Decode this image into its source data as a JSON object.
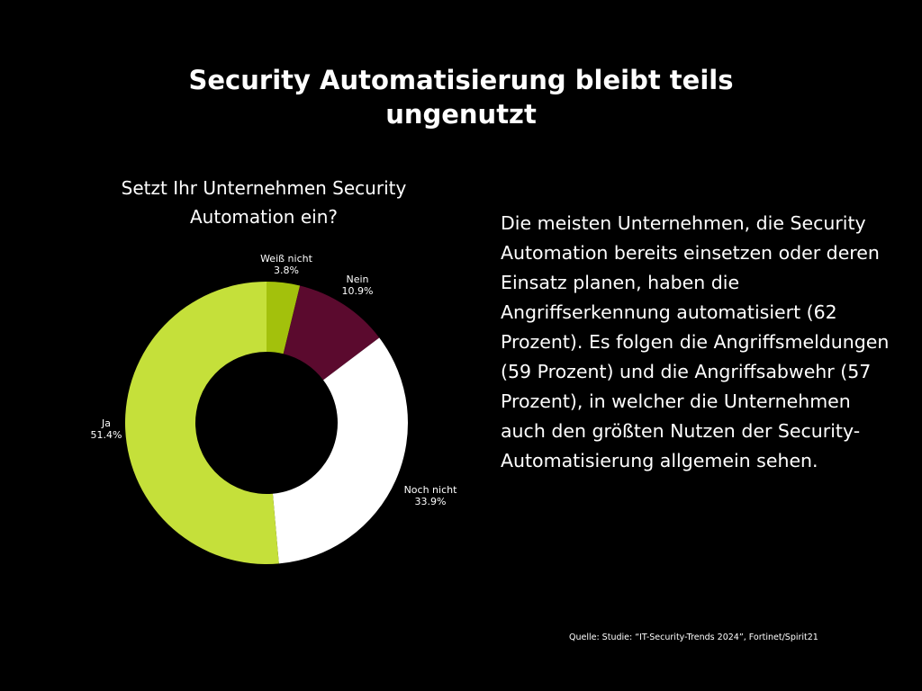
{
  "page": {
    "title": "Security Automatisierung bleibt teils ungenutzt",
    "description": "Die meisten Unternehmen, die Security Automation bereits einsetzen oder deren Einsatz planen, haben die Angriffserkennung automatisiert (62 Prozent). Es folgen die Angriffsmeldungen (59 Prozent) und die Angriffsabwehr (57 Prozent), in welcher die Unternehmen auch den größten Nutzen der Security-Automatisierung allgemein sehen.",
    "source": "Quelle: Studie: “IT-Security-Trends 2024”, Fortinet/Spirit21",
    "background_color": "#000000"
  },
  "chart_data": {
    "type": "pie",
    "variant": "donut",
    "title": "Setzt Ihr Unternehmen Security Automation ein?",
    "unit": "%",
    "legend": "none",
    "slices": [
      {
        "label": "Weiß nicht",
        "value": 3.8,
        "display": "3.8%",
        "color": "#a3c10c"
      },
      {
        "label": "Nein",
        "value": 10.9,
        "display": "10.9%",
        "color": "#5b0a2e"
      },
      {
        "label": "Noch nicht",
        "value": 33.9,
        "display": "33.9%",
        "color": "#ffffff"
      },
      {
        "label": "Ja",
        "value": 51.4,
        "display": "51.4%",
        "color": "#c5e03a"
      }
    ]
  }
}
